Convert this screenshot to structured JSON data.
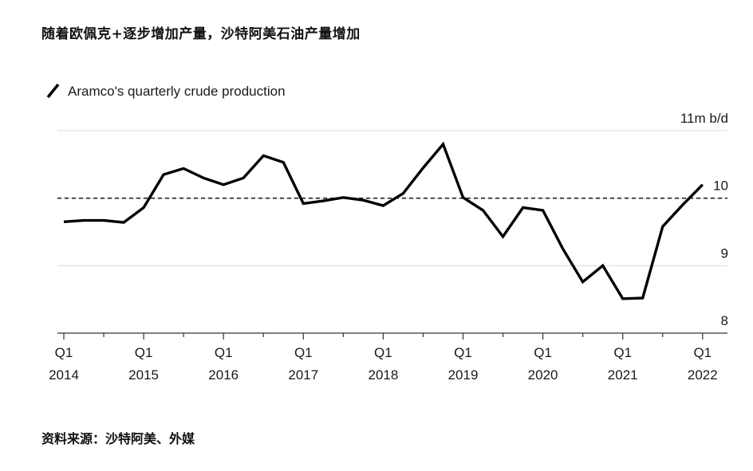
{
  "headline": "随着欧佩克+逐步增加产量，沙特阿美石油产量增加",
  "source": "资料来源：沙特阿美、外媒",
  "chart_data": {
    "type": "line",
    "legend": "Aramco's quarterly crude production",
    "legend_position": "top-left",
    "unit_label": "11m b/d",
    "ylim": [
      8,
      11
    ],
    "y_ticks": [
      {
        "value": 11,
        "label": "11m b/d"
      },
      {
        "value": 10,
        "label": "10"
      },
      {
        "value": 9,
        "label": "9"
      },
      {
        "value": 8,
        "label": "8"
      }
    ],
    "reference_line": {
      "value": 10.0,
      "style": "dashed"
    },
    "x_ticks": [
      {
        "value": 2014,
        "q": "Q1",
        "year": "2014"
      },
      {
        "value": 2015,
        "q": "Q1",
        "year": "2015"
      },
      {
        "value": 2016,
        "q": "Q1",
        "year": "2016"
      },
      {
        "value": 2017,
        "q": "Q1",
        "year": "2017"
      },
      {
        "value": 2018,
        "q": "Q1",
        "year": "2018"
      },
      {
        "value": 2019,
        "q": "Q1",
        "year": "2019"
      },
      {
        "value": 2020,
        "q": "Q1",
        "year": "2020"
      },
      {
        "value": 2021,
        "q": "Q1",
        "year": "2021"
      },
      {
        "value": 2022,
        "q": "Q1",
        "year": "2022"
      }
    ],
    "xlim": [
      2013.93,
      2022.3
    ],
    "grid": true,
    "series": [
      {
        "name": "Aramco's quarterly crude production",
        "color": "#000000",
        "points": [
          {
            "x": 2014.0,
            "y": 9.65
          },
          {
            "x": 2014.25,
            "y": 9.67
          },
          {
            "x": 2014.5,
            "y": 9.67
          },
          {
            "x": 2014.75,
            "y": 9.64
          },
          {
            "x": 2015.0,
            "y": 9.86
          },
          {
            "x": 2015.25,
            "y": 10.35
          },
          {
            "x": 2015.5,
            "y": 10.44
          },
          {
            "x": 2015.75,
            "y": 10.3
          },
          {
            "x": 2016.0,
            "y": 10.2
          },
          {
            "x": 2016.25,
            "y": 10.3
          },
          {
            "x": 2016.5,
            "y": 10.63
          },
          {
            "x": 2016.75,
            "y": 10.53
          },
          {
            "x": 2017.0,
            "y": 9.92
          },
          {
            "x": 2017.25,
            "y": 9.96
          },
          {
            "x": 2017.5,
            "y": 10.01
          },
          {
            "x": 2017.75,
            "y": 9.97
          },
          {
            "x": 2018.0,
            "y": 9.89
          },
          {
            "x": 2018.25,
            "y": 10.07
          },
          {
            "x": 2018.5,
            "y": 10.45
          },
          {
            "x": 2018.75,
            "y": 10.8
          },
          {
            "x": 2019.0,
            "y": 10.01
          },
          {
            "x": 2019.25,
            "y": 9.82
          },
          {
            "x": 2019.5,
            "y": 9.43
          },
          {
            "x": 2019.75,
            "y": 9.86
          },
          {
            "x": 2020.0,
            "y": 9.82
          },
          {
            "x": 2020.25,
            "y": 9.25
          },
          {
            "x": 2020.5,
            "y": 8.76
          },
          {
            "x": 2020.75,
            "y": 9.0
          },
          {
            "x": 2021.0,
            "y": 8.51
          },
          {
            "x": 2021.25,
            "y": 8.52
          },
          {
            "x": 2021.5,
            "y": 9.58
          },
          {
            "x": 2021.75,
            "y": 9.9
          },
          {
            "x": 2022.0,
            "y": 10.2
          }
        ]
      }
    ]
  }
}
